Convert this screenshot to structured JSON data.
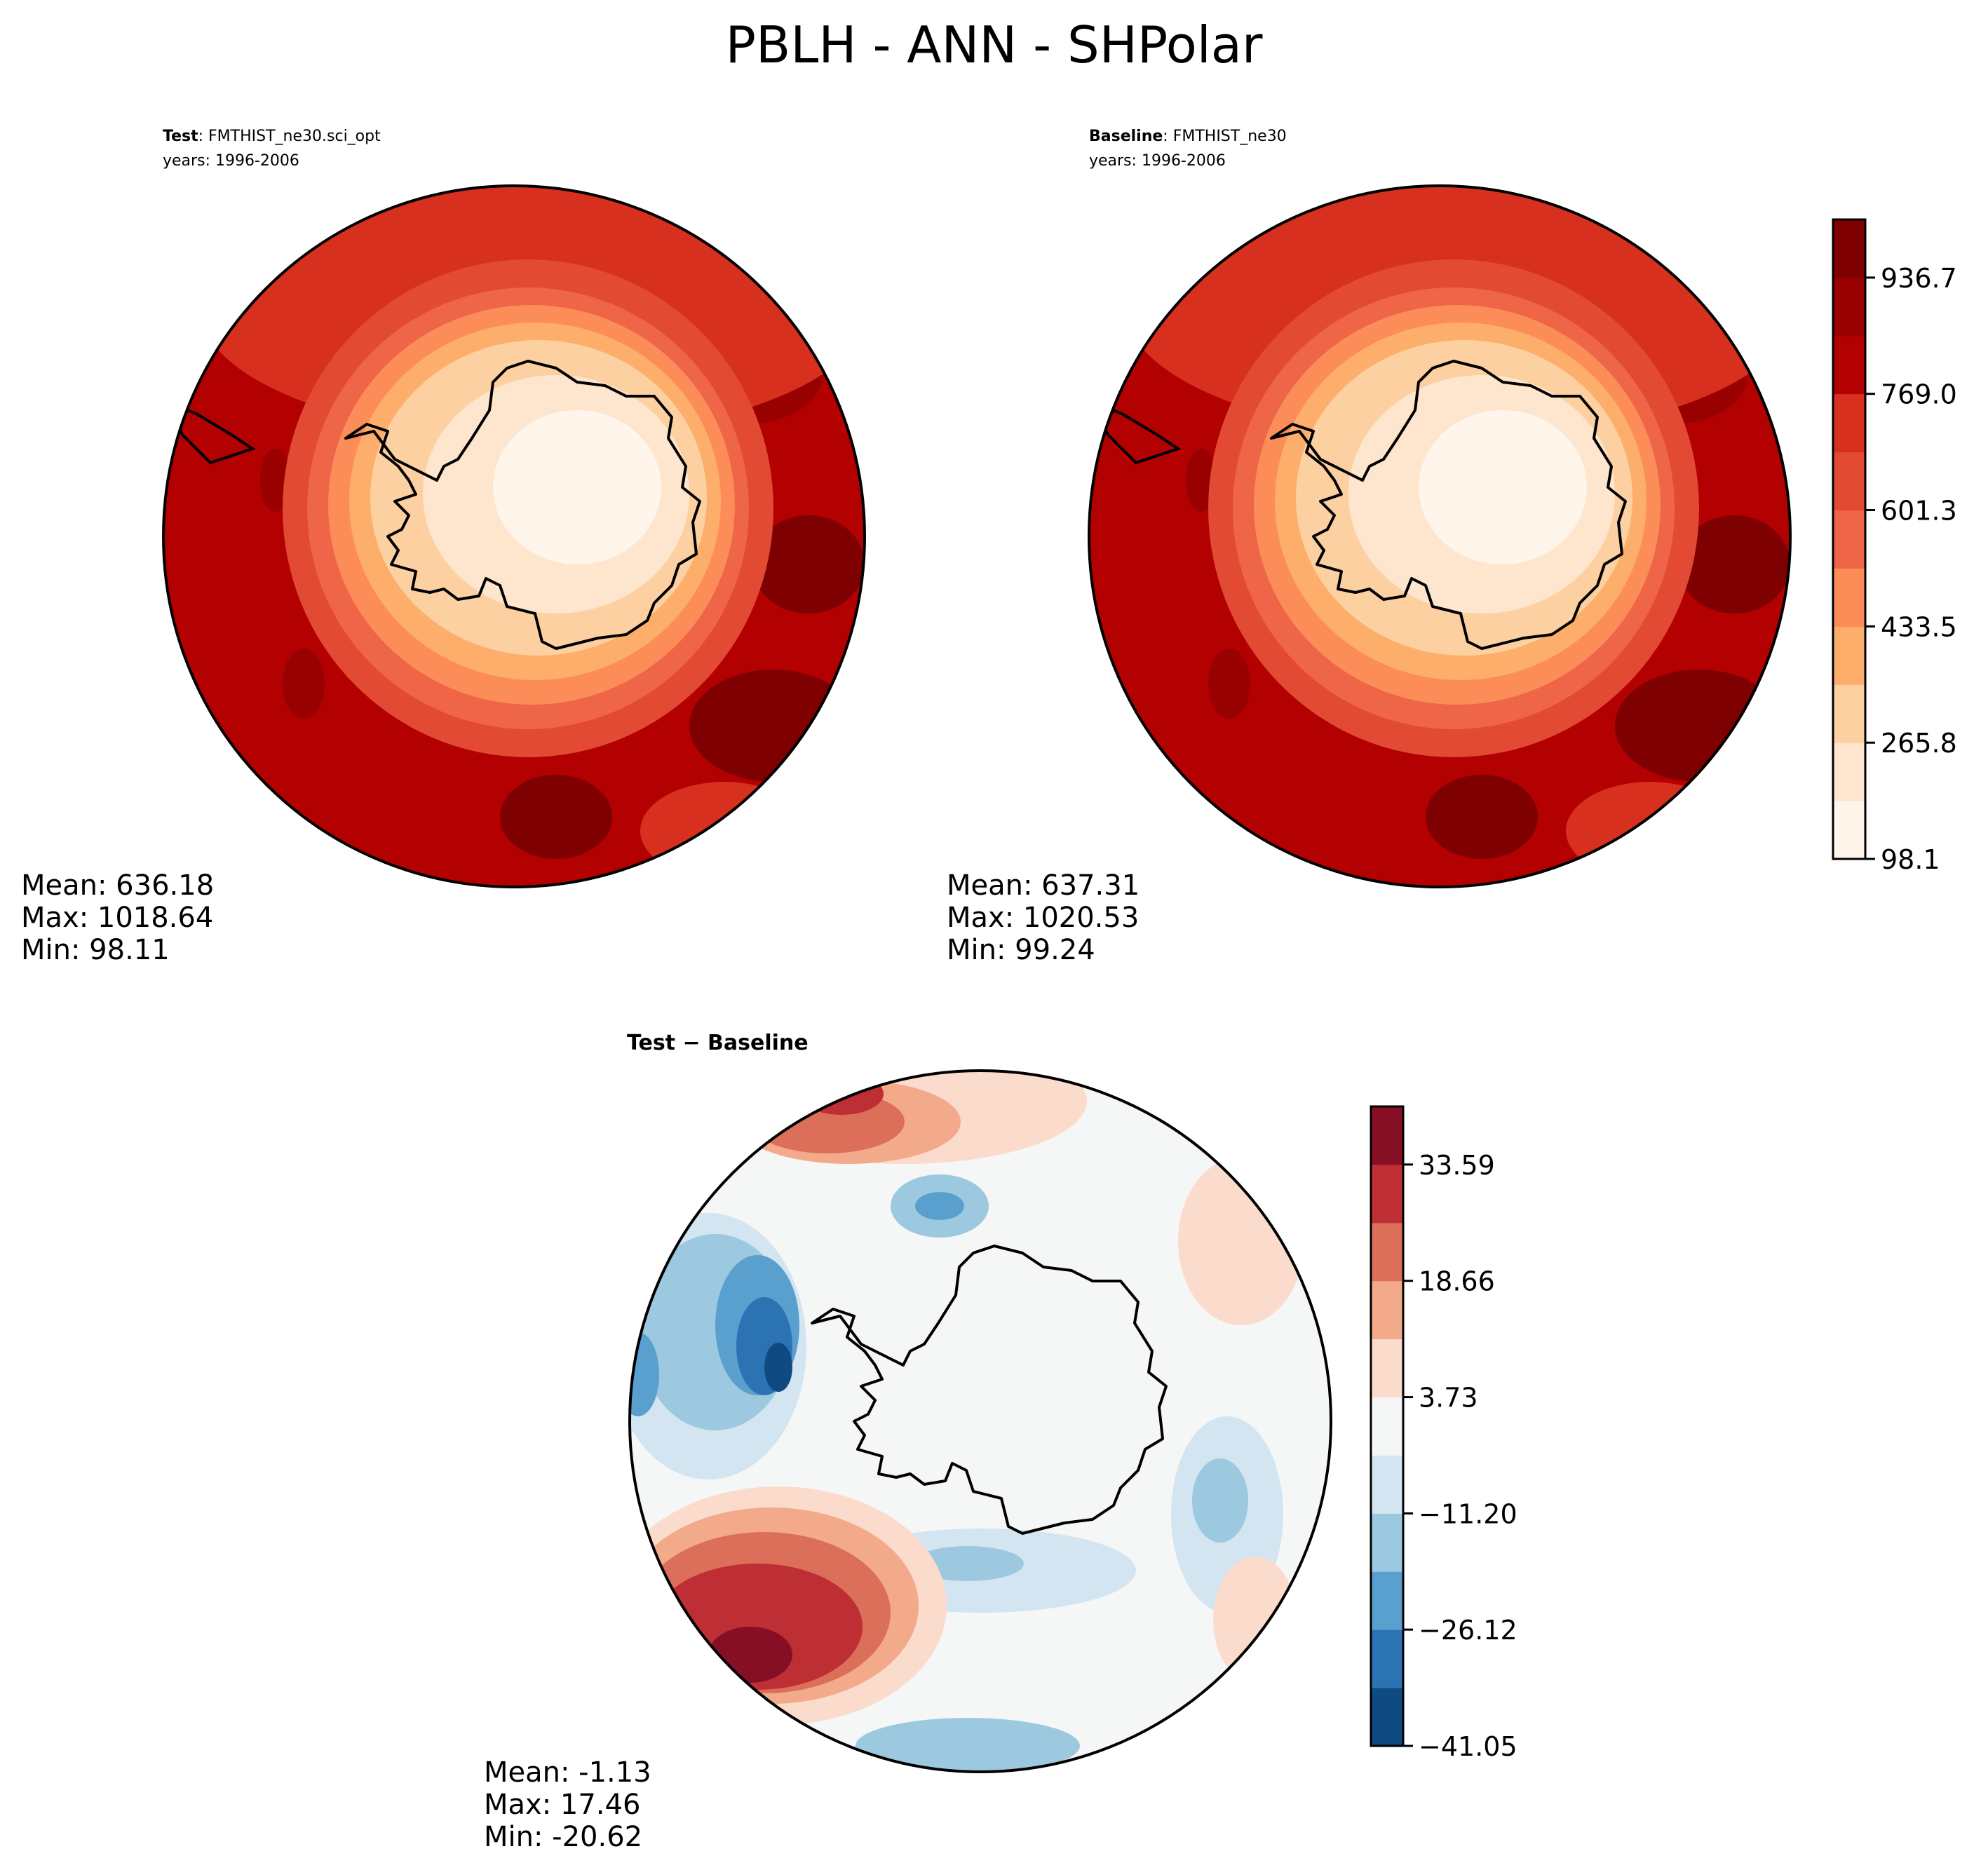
{
  "figure": {
    "title": "PBLH - ANN - SHPolar"
  },
  "panels": {
    "test": {
      "label": "Test",
      "case": ": FMTHIST_ne30.sci_opt",
      "years": "years: 1996-2006",
      "mean": "Mean: 636.18",
      "max": "Max: 1018.64",
      "min": "Min: 98.11"
    },
    "baseline": {
      "label": "Baseline",
      "case": ": FMTHIST_ne30",
      "years": "years: 1996-2006",
      "mean": "Mean: 637.31",
      "max": "Max: 1020.53",
      "min": "Min: 99.24"
    },
    "diff": {
      "title": "Test − Baseline",
      "mean": "Mean: -1.13",
      "max": "Max: 17.46",
      "min": "Min: -20.62"
    }
  },
  "chart_data": [
    {
      "type": "heatmap",
      "name": "PBLH absolute colorbar (Test & Baseline)",
      "variable": "PBLH",
      "season": "ANN",
      "region": "SHPolar",
      "levels": [
        98.1,
        181.95,
        265.8,
        349.65,
        433.5,
        517.4,
        601.3,
        685.15,
        769.0,
        852.85,
        936.7,
        1020.55
      ],
      "tick_labels": [
        "98.1",
        "265.8",
        "433.5",
        "601.3",
        "769.0",
        "936.7"
      ],
      "colors": [
        "#fff5eb",
        "#fee6ce",
        "#fdd0a2",
        "#fdae6b",
        "#fc8d59",
        "#ef6548",
        "#e34a33",
        "#d7301f",
        "#b30000",
        "#990000",
        "#7f0000"
      ]
    },
    {
      "type": "heatmap",
      "name": "Test - Baseline difference colorbar",
      "levels": [
        -41.05,
        -33.59,
        -26.12,
        -18.66,
        -11.2,
        -3.73,
        3.73,
        11.2,
        18.66,
        26.12,
        33.59,
        41.05
      ],
      "tick_labels": [
        "−41.05",
        "−26.12",
        "−11.20",
        "3.73",
        "18.66",
        "33.59"
      ],
      "colors": [
        "#0f4a80",
        "#2c73b4",
        "#5aa0ce",
        "#9dc9e0",
        "#d3e5f1",
        "#f5f6f6",
        "#fbdbcb",
        "#f2aa8b",
        "#dc6f5a",
        "#bd2e35",
        "#870f25"
      ]
    }
  ],
  "colors": {
    "land_outline": "#000000",
    "ocean_high": "#b30000",
    "interior_low": "#fde7cf",
    "diff_neutral": "#f5f6f6"
  }
}
